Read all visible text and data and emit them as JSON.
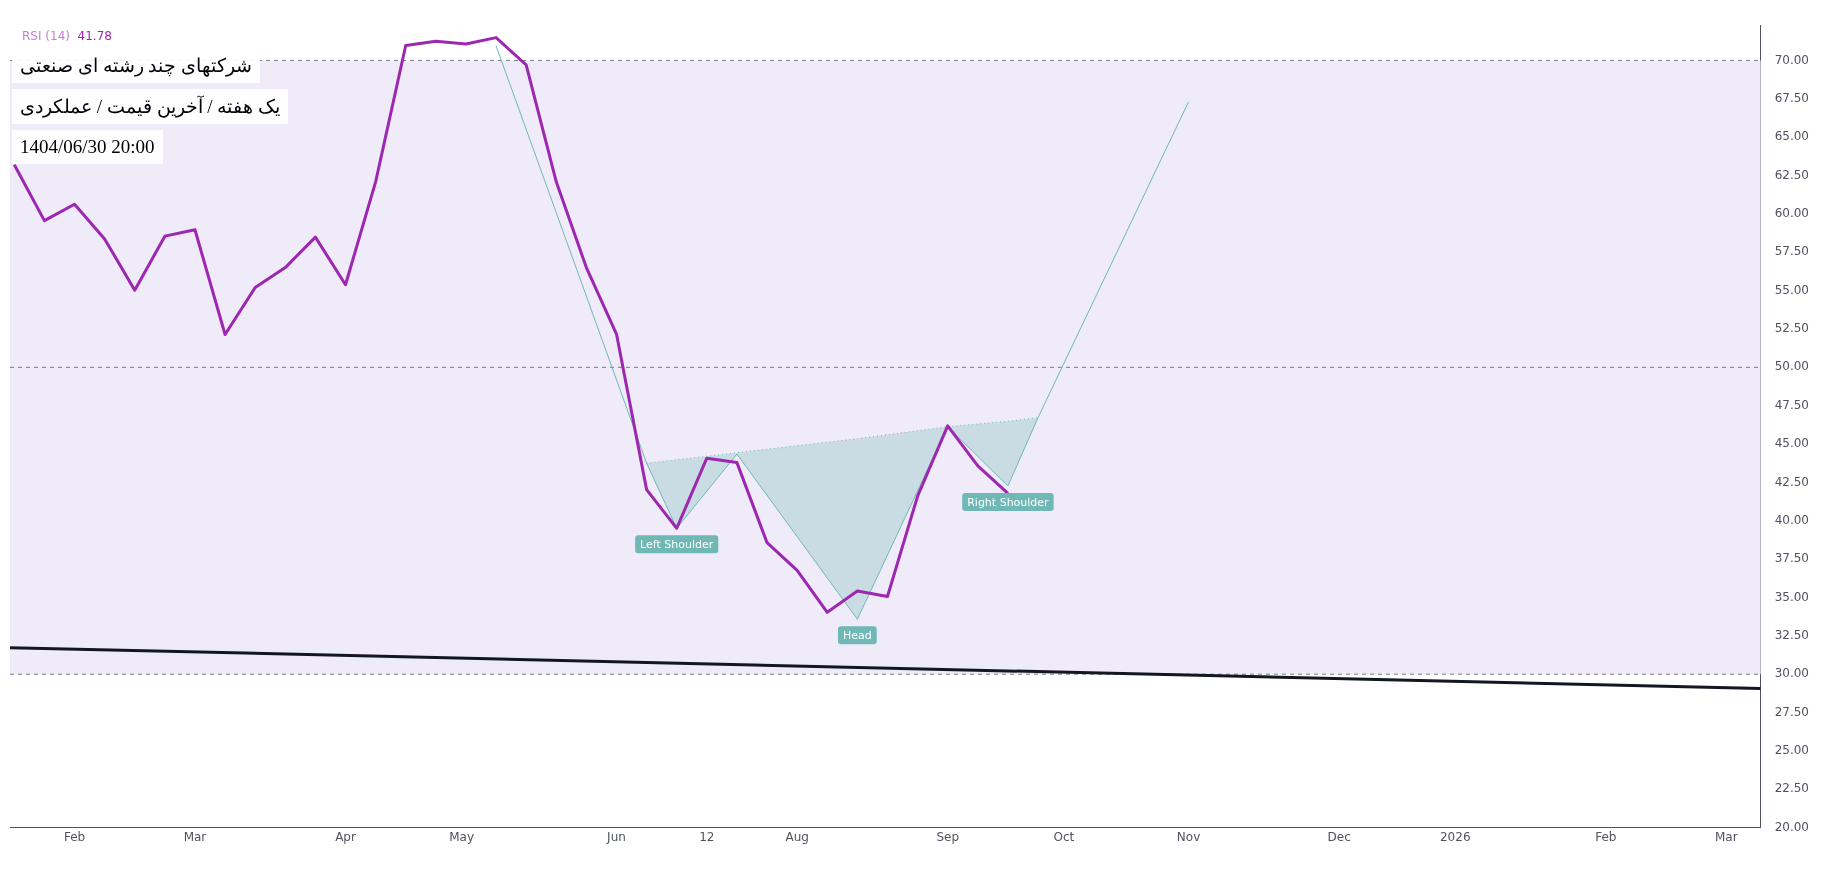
{
  "chart_data": {
    "type": "line",
    "title": "شرکتهای چند رشته ای صنعتی",
    "subtitle": "یک هفته / آخرین قیمت / عملکردی",
    "annotations": [
      "41.78",
      "1404/06/30 20:00",
      {
        "text": "Left Shoulder",
        "x": "2025-07-05",
        "y": 39.51
      },
      {
        "text": "Head",
        "x": "2025-08-16",
        "y": 33.58
      },
      {
        "text": "Right Shoulder",
        "x": "2025-09-20",
        "y": 42.27
      }
    ],
    "x": [
      "2025-02-01",
      "2025-02-08",
      "2025-02-15",
      "2025-02-22",
      "2025-03-01",
      "2025-03-08",
      "2025-03-15",
      "2025-03-22",
      "2025-03-29",
      "2025-04-05",
      "2025-04-12",
      "2025-04-19",
      "2025-04-26",
      "2025-05-03",
      "2025-05-10",
      "2025-05-17",
      "2025-05-24",
      "2025-05-31",
      "2025-06-07",
      "2025-06-14",
      "2025-06-21",
      "2025-06-28",
      "2025-07-05",
      "2025-07-12",
      "2025-07-19",
      "2025-07-26",
      "2025-08-02",
      "2025-08-09",
      "2025-08-16",
      "2025-08-23",
      "2025-08-30",
      "2025-09-06",
      "2025-09-13",
      "2025-09-20"
    ],
    "series": [
      {
        "name": "RSI (14)",
        "color": "#9c27b0",
        "values": [
          63.2,
          59.56,
          60.63,
          58.37,
          55.02,
          58.55,
          58.97,
          52.14,
          55.2,
          56.5,
          58.49,
          55.38,
          62.09,
          70.98,
          71.26,
          71.08,
          71.49,
          69.71,
          62.09,
          56.5,
          52.17,
          42.03,
          39.51,
          44.08,
          43.79,
          38.57,
          36.76,
          34.03,
          35.42,
          35.06,
          41.6,
          46.19,
          43.58,
          41.78
        ]
      },
      {
        "color": "#131722",
        "x": [
          "2025-01-31",
          "2026-03-14"
        ],
        "values": [
          31.73,
          29.07
        ]
      },
      {
        "color": "#6fb8b5",
        "x": [
          "2025-05-24",
          "2025-06-28",
          "2025-07-05",
          "2025-07-19",
          "2025-08-16",
          "2025-09-06",
          "2025-09-20",
          "2025-09-27",
          "2025-11-01"
        ],
        "values": [
          70.96,
          43.75,
          39.51,
          44.35,
          33.58,
          46.13,
          42.27,
          46.72,
          67.31
        ]
      },
      {
        "color": "#6fb8b5",
        "line_style": "dotted",
        "x": [
          "2025-06-28",
          "2025-07-05",
          "2025-07-19",
          "2025-08-16",
          "2025-09-06",
          "2025-09-20",
          "2025-09-27"
        ],
        "values": [
          43.75,
          43.98,
          44.44,
          45.35,
          46.13,
          46.49,
          46.72
        ],
        "upper": [
          43.75,
          43.98,
          44.44,
          45.35,
          46.13,
          46.49,
          46.72
        ],
        "lower": [
          43.75,
          39.51,
          44.35,
          33.58,
          46.13,
          42.27,
          46.72
        ]
      }
    ],
    "xlim": [
      "2025-01-31",
      "2026-03-14"
    ],
    "xticks": [
      {
        "value": "2025-02-15",
        "label": "Feb"
      },
      {
        "value": "2025-03-15",
        "label": "Mar"
      },
      {
        "value": "2025-04-19",
        "label": "Apr"
      },
      {
        "value": "2025-05-16",
        "label": "May"
      },
      {
        "value": "2025-06-21",
        "label": "Jun"
      },
      {
        "value": "2025-07-12",
        "label": "12"
      },
      {
        "value": "2025-08-02",
        "label": "Aug"
      },
      {
        "value": "2025-09-06",
        "label": "Sep"
      },
      {
        "value": "2025-10-03",
        "label": "Oct"
      },
      {
        "value": "2025-11-01",
        "label": "Nov"
      },
      {
        "value": "2025-12-06",
        "label": "Dec"
      },
      {
        "value": "2026-01-02",
        "label": "2026"
      },
      {
        "value": "2026-02-06",
        "label": "Feb"
      },
      {
        "value": "2026-03-06",
        "label": "Mar"
      }
    ],
    "ylim": [
      20,
      72.3
    ],
    "yticks": [
      {
        "value": 20,
        "label": "20.00"
      },
      {
        "value": 22.5,
        "label": "22.50"
      },
      {
        "value": 25,
        "label": "25.00"
      },
      {
        "value": 27.5,
        "label": "27.50"
      },
      {
        "value": 30,
        "label": "30.00"
      },
      {
        "value": 32.5,
        "label": "32.50"
      },
      {
        "value": 35,
        "label": "35.00"
      },
      {
        "value": 37.5,
        "label": "37.50"
      },
      {
        "value": 40,
        "label": "40.00"
      },
      {
        "value": 42.5,
        "label": "42.50"
      },
      {
        "value": 45,
        "label": "45.00"
      },
      {
        "value": 47.5,
        "label": "47.50"
      },
      {
        "value": 50,
        "label": "50.00"
      },
      {
        "value": 52.5,
        "label": "52.50"
      },
      {
        "value": 55,
        "label": "55.00"
      },
      {
        "value": 57.5,
        "label": "57.50"
      },
      {
        "value": 60,
        "label": "60.00"
      },
      {
        "value": 62.5,
        "label": "62.50"
      },
      {
        "value": 65,
        "label": "65.00"
      },
      {
        "value": 67.5,
        "label": "67.50"
      },
      {
        "value": 70,
        "label": "70.00"
      }
    ],
    "ref_lines": [
      {
        "axis": "y",
        "value": 70,
        "color": "#787b86",
        "line_style": "dashed"
      },
      {
        "axis": "y",
        "value": 50,
        "color": "#787b86",
        "line_style": "dashed"
      },
      {
        "axis": "y",
        "value": 30,
        "color": "#787b86",
        "line_style": "dashed"
      }
    ],
    "bands": [
      {
        "axis": "y",
        "from": 30,
        "to": 70,
        "color": "#f0ebf8"
      }
    ],
    "legend": "top left"
  }
}
